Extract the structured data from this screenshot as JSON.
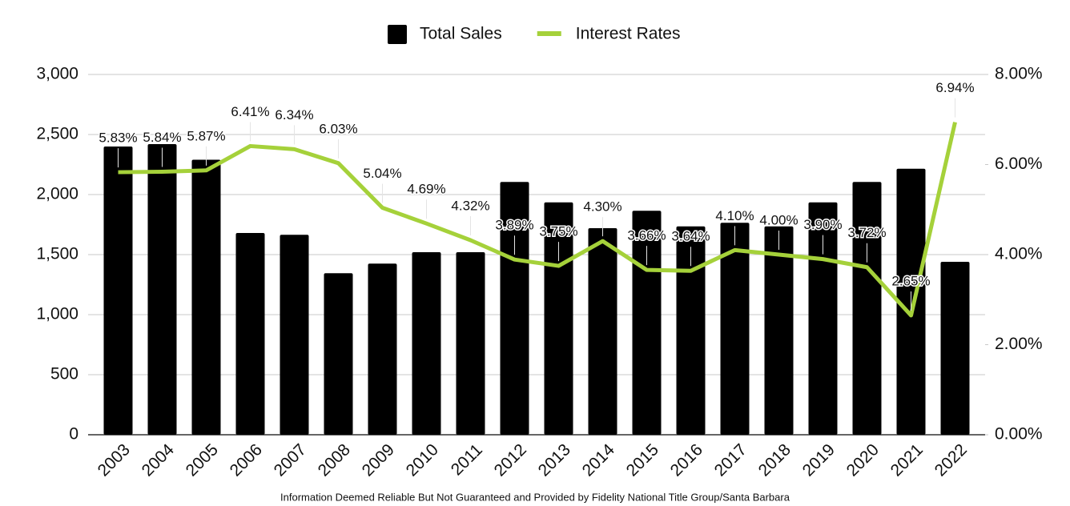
{
  "chart_data": {
    "type": "bar-line",
    "note": "Information Deemed Reliable But Not Guaranteed and Provided by Fidelity National Title Group/Santa Barbara",
    "categories": [
      "2003",
      "2004",
      "2005",
      "2006",
      "2007",
      "2008",
      "2009",
      "2010",
      "2011",
      "2012",
      "2013",
      "2014",
      "2015",
      "2016",
      "2017",
      "2018",
      "2019",
      "2020",
      "2021",
      "2022"
    ],
    "series": [
      {
        "name": "Total Sales",
        "color": "#000000",
        "type": "bar",
        "values": [
          2400,
          2420,
          2290,
          1680,
          1665,
          1345,
          1425,
          1520,
          1520,
          2105,
          1935,
          1720,
          1865,
          1735,
          1765,
          1735,
          1935,
          2105,
          2215,
          1440
        ]
      },
      {
        "name": "Interest Rates",
        "color": "#a5d13a",
        "type": "line",
        "axis": "y2",
        "values": [
          5.83,
          5.84,
          5.87,
          6.41,
          6.34,
          6.03,
          5.04,
          4.69,
          4.32,
          3.89,
          3.75,
          4.3,
          3.66,
          3.64,
          4.1,
          4.0,
          3.9,
          3.72,
          2.65,
          6.94
        ],
        "value_labels": [
          "5.83%",
          "5.84%",
          "5.87%",
          "6.41%",
          "6.34%",
          "6.03%",
          "5.04%",
          "4.69%",
          "4.32%",
          "3.89%",
          "3.75%",
          "4.30%",
          "3.66%",
          "3.64%",
          "4.10%",
          "4.00%",
          "3.90%",
          "3.72%",
          "2.65%",
          "6.94%"
        ]
      }
    ],
    "ylim": [
      0,
      3000
    ],
    "yticks": [
      0,
      500,
      {
        "value": 1000,
        "label": "1,000"
      },
      {
        "value": 1500,
        "label": "1,500"
      },
      {
        "value": 2000,
        "label": "2,000"
      },
      {
        "value": 2500,
        "label": "2,500"
      },
      {
        "value": 3000,
        "label": "3,000"
      }
    ],
    "y2lim": [
      0,
      8
    ],
    "y2ticks": [
      {
        "value": 0,
        "label": "0.00%"
      },
      {
        "value": 2,
        "label": "2.00%"
      },
      {
        "value": 4,
        "label": "4.00%"
      },
      {
        "value": 6,
        "label": "6.00%"
      },
      {
        "value": 8,
        "label": "8.00%"
      }
    ],
    "grid": true,
    "legend": "top"
  }
}
